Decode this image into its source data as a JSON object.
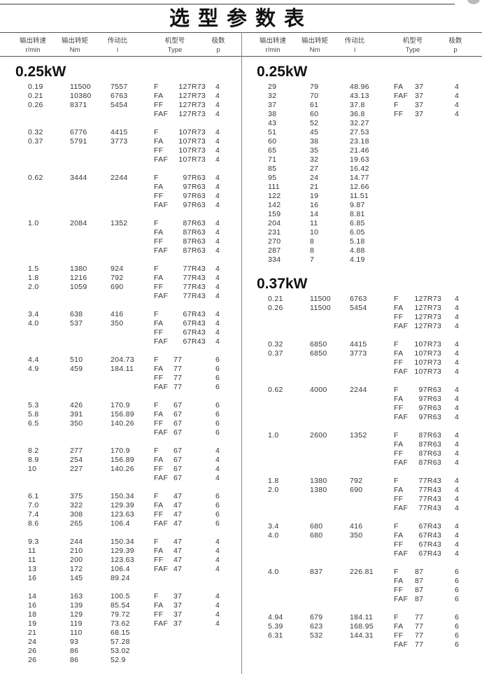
{
  "title": "选型参数表",
  "headers": [
    {
      "cn": "输出转速",
      "en": "r/min"
    },
    {
      "cn": "输出转矩",
      "en": "Nm"
    },
    {
      "cn": "传动比",
      "en": "i"
    },
    {
      "cn": "机型号",
      "en": "Type"
    },
    {
      "cn": "极数",
      "en": "p"
    }
  ],
  "left": {
    "sections": [
      {
        "power": "0.25kW",
        "groups": [
          {
            "rows": [
              [
                "0.19",
                "11500",
                "7557",
                "F",
                "127R73",
                "4"
              ],
              [
                "0.21",
                "10380",
                "6763",
                "FA",
                "127R73",
                "4"
              ],
              [
                "0.26",
                "8371",
                "5454",
                "FF",
                "127R73",
                "4"
              ],
              [
                "",
                "",
                "",
                "FAF",
                "127R73",
                "4"
              ]
            ]
          },
          {
            "rows": [
              [
                "0.32",
                "6776",
                "4415",
                "F",
                "107R73",
                "4"
              ],
              [
                "0.37",
                "5791",
                "3773",
                "FA",
                "107R73",
                "4"
              ],
              [
                "",
                "",
                "",
                "FF",
                "107R73",
                "4"
              ],
              [
                "",
                "",
                "",
                "FAF",
                "107R73",
                "4"
              ]
            ]
          },
          {
            "rows": [
              [
                "0.62",
                "3444",
                "2244",
                "F",
                "97R63",
                "4"
              ],
              [
                "",
                "",
                "",
                "FA",
                "97R63",
                "4"
              ],
              [
                "",
                "",
                "",
                "FF",
                "97R63",
                "4"
              ],
              [
                "",
                "",
                "",
                "FAF",
                "97R63",
                "4"
              ]
            ]
          },
          {
            "rows": [
              [
                "1.0",
                "2084",
                "1352",
                "F",
                "87R63",
                "4"
              ],
              [
                "",
                "",
                "",
                "FA",
                "87R63",
                "4"
              ],
              [
                "",
                "",
                "",
                "FF",
                "87R63",
                "4"
              ],
              [
                "",
                "",
                "",
                "FAF",
                "87R63",
                "4"
              ]
            ]
          },
          {
            "rows": [
              [
                "1.5",
                "1380",
                "924",
                "F",
                "77R43",
                "4"
              ],
              [
                "1.8",
                "1216",
                "792",
                "FA",
                "77R43",
                "4"
              ],
              [
                "2.0",
                "1059",
                "690",
                "FF",
                "77R43",
                "4"
              ],
              [
                "",
                "",
                "",
                "FAF",
                "77R43",
                "4"
              ]
            ]
          },
          {
            "rows": [
              [
                "3.4",
                "638",
                "416",
                "F",
                "67R43",
                "4"
              ],
              [
                "4.0",
                "537",
                "350",
                "FA",
                "67R43",
                "4"
              ],
              [
                "",
                "",
                "",
                "FF",
                "67R43",
                "4"
              ],
              [
                "",
                "",
                "",
                "FAF",
                "67R43",
                "4"
              ]
            ]
          },
          {
            "rows": [
              [
                "4.4",
                "510",
                "204.73",
                "F",
                "77",
                "6"
              ],
              [
                "4.9",
                "459",
                "184.11",
                "FA",
                "77",
                "6"
              ],
              [
                "",
                "",
                "",
                "FF",
                "77",
                "6"
              ],
              [
                "",
                "",
                "",
                "FAF",
                "77",
                "6"
              ]
            ]
          },
          {
            "rows": [
              [
                "5.3",
                "426",
                "170.9",
                "F",
                "67",
                "6"
              ],
              [
                "5.8",
                "391",
                "156.89",
                "FA",
                "67",
                "6"
              ],
              [
                "6.5",
                "350",
                "140.26",
                "FF",
                "67",
                "6"
              ],
              [
                "",
                "",
                "",
                "FAF",
                "67",
                "6"
              ]
            ]
          },
          {
            "rows": [
              [
                "8.2",
                "277",
                "170.9",
                "F",
                "67",
                "4"
              ],
              [
                "8.9",
                "254",
                "156.89",
                "FA",
                "67",
                "4"
              ],
              [
                "10",
                "227",
                "140.26",
                "FF",
                "67",
                "4"
              ],
              [
                "",
                "",
                "",
                "FAF",
                "67",
                "4"
              ]
            ]
          },
          {
            "rows": [
              [
                "6.1",
                "375",
                "150.34",
                "F",
                "47",
                "6"
              ],
              [
                "7.0",
                "322",
                "129.39",
                "FA",
                "47",
                "6"
              ],
              [
                "7.4",
                "308",
                "123.63",
                "FF",
                "47",
                "6"
              ],
              [
                "8.6",
                "265",
                "106.4",
                "FAF",
                "47",
                "6"
              ]
            ]
          },
          {
            "rows": [
              [
                "9.3",
                "244",
                "150.34",
                "F",
                "47",
                "4"
              ],
              [
                "11",
                "210",
                "129.39",
                "FA",
                "47",
                "4"
              ],
              [
                "11",
                "200",
                "123.63",
                "FF",
                "47",
                "4"
              ],
              [
                "13",
                "172",
                "106.4",
                "FAF",
                "47",
                "4"
              ],
              [
                "16",
                "145",
                "89.24",
                "",
                "",
                ""
              ]
            ]
          },
          {
            "rows": [
              [
                "14",
                "163",
                "100.5",
                "F",
                "37",
                "4"
              ],
              [
                "16",
                "139",
                "85.54",
                "FA",
                "37",
                "4"
              ],
              [
                "18",
                "129",
                "79.72",
                "FF",
                "37",
                "4"
              ],
              [
                "19",
                "119",
                "73.62",
                "FAF",
                "37",
                "4"
              ],
              [
                "21",
                "110",
                "68.15",
                "",
                "",
                ""
              ],
              [
                "24",
                "93",
                "57.28",
                "",
                "",
                ""
              ],
              [
                "26",
                "86",
                "53.02",
                "",
                "",
                ""
              ],
              [
                "26",
                "86",
                "52.9",
                "",
                "",
                ""
              ]
            ]
          }
        ]
      }
    ]
  },
  "right": {
    "sections": [
      {
        "power": "0.25kW",
        "groups": [
          {
            "rows": [
              [
                "29",
                "79",
                "48.96",
                "FA",
                "37",
                "4"
              ],
              [
                "32",
                "70",
                "43.13",
                "FAF",
                "37",
                "4"
              ],
              [
                "37",
                "61",
                "37.8",
                "F",
                "37",
                "4"
              ],
              [
                "38",
                "60",
                "36.8",
                "FF",
                "37",
                "4"
              ],
              [
                "43",
                "52",
                "32.27",
                "",
                "",
                ""
              ],
              [
                "51",
                "45",
                "27.53",
                "",
                "",
                ""
              ],
              [
                "60",
                "38",
                "23.18",
                "",
                "",
                ""
              ],
              [
                "65",
                "35",
                "21.46",
                "",
                "",
                ""
              ],
              [
                "71",
                "32",
                "19.63",
                "",
                "",
                ""
              ],
              [
                "85",
                "27",
                "16.42",
                "",
                "",
                ""
              ],
              [
                "95",
                "24",
                "14.77",
                "",
                "",
                ""
              ],
              [
                "111",
                "21",
                "12.66",
                "",
                "",
                ""
              ],
              [
                "122",
                "19",
                "11.51",
                "",
                "",
                ""
              ],
              [
                "142",
                "16",
                "9.87",
                "",
                "",
                ""
              ],
              [
                "159",
                "14",
                "8.81",
                "",
                "",
                ""
              ],
              [
                "204",
                "11",
                "6.85",
                "",
                "",
                ""
              ],
              [
                "231",
                "10",
                "6.05",
                "",
                "",
                ""
              ],
              [
                "270",
                "8",
                "5.18",
                "",
                "",
                ""
              ],
              [
                "287",
                "8",
                "4.88",
                "",
                "",
                ""
              ],
              [
                "334",
                "7",
                "4.19",
                "",
                "",
                ""
              ]
            ]
          }
        ]
      },
      {
        "power": "0.37kW",
        "groups": [
          {
            "rows": [
              [
                "0.21",
                "11500",
                "6763",
                "F",
                "127R73",
                "4"
              ],
              [
                "0.26",
                "11500",
                "5454",
                "FA",
                "127R73",
                "4"
              ],
              [
                "",
                "",
                "",
                "FF",
                "127R73",
                "4"
              ],
              [
                "",
                "",
                "",
                "FAF",
                "127R73",
                "4"
              ]
            ]
          },
          {
            "rows": [
              [
                "0.32",
                "6850",
                "4415",
                "F",
                "107R73",
                "4"
              ],
              [
                "0.37",
                "6850",
                "3773",
                "FA",
                "107R73",
                "4"
              ],
              [
                "",
                "",
                "",
                "FF",
                "107R73",
                "4"
              ],
              [
                "",
                "",
                "",
                "FAF",
                "107R73",
                "4"
              ]
            ]
          },
          {
            "rows": [
              [
                "0.62",
                "4000",
                "2244",
                "F",
                "97R63",
                "4"
              ],
              [
                "",
                "",
                "",
                "FA",
                "97R63",
                "4"
              ],
              [
                "",
                "",
                "",
                "FF",
                "97R63",
                "4"
              ],
              [
                "",
                "",
                "",
                "FAF",
                "97R63",
                "4"
              ]
            ]
          },
          {
            "rows": [
              [
                "1.0",
                "2600",
                "1352",
                "F",
                "87R63",
                "4"
              ],
              [
                "",
                "",
                "",
                "FA",
                "87R63",
                "4"
              ],
              [
                "",
                "",
                "",
                "FF",
                "87R63",
                "4"
              ],
              [
                "",
                "",
                "",
                "FAF",
                "87R63",
                "4"
              ]
            ]
          },
          {
            "rows": [
              [
                "1.8",
                "1380",
                "792",
                "F",
                "77R43",
                "4"
              ],
              [
                "2.0",
                "1380",
                "690",
                "FA",
                "77R43",
                "4"
              ],
              [
                "",
                "",
                "",
                "FF",
                "77R43",
                "4"
              ],
              [
                "",
                "",
                "",
                "FAF",
                "77R43",
                "4"
              ]
            ]
          },
          {
            "rows": [
              [
                "3.4",
                "680",
                "416",
                "F",
                "67R43",
                "4"
              ],
              [
                "4.0",
                "680",
                "350",
                "FA",
                "67R43",
                "4"
              ],
              [
                "",
                "",
                "",
                "FF",
                "67R43",
                "4"
              ],
              [
                "",
                "",
                "",
                "FAF",
                "67R43",
                "4"
              ]
            ]
          },
          {
            "rows": [
              [
                "4.0",
                "837",
                "226.81",
                "F",
                "87",
                "6"
              ],
              [
                "",
                "",
                "",
                "FA",
                "87",
                "6"
              ],
              [
                "",
                "",
                "",
                "FF",
                "87",
                "6"
              ],
              [
                "",
                "",
                "",
                "FAF",
                "87",
                "6"
              ]
            ]
          },
          {
            "rows": [
              [
                "4.94",
                "679",
                "184.11",
                "F",
                "77",
                "6"
              ],
              [
                "5.39",
                "623",
                "168.95",
                "FA",
                "77",
                "6"
              ],
              [
                "6.31",
                "532",
                "144.31",
                "FF",
                "77",
                "6"
              ],
              [
                "",
                "",
                "",
                "FAF",
                "77",
                "6"
              ]
            ]
          }
        ]
      }
    ]
  }
}
